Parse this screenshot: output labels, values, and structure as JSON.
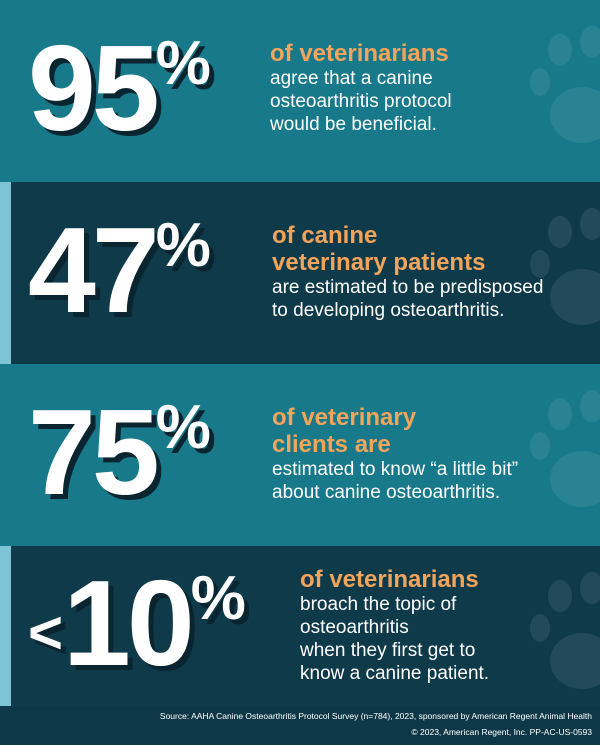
{
  "stats": [
    {
      "number": "95",
      "unit": "%",
      "heading": [
        "of veterinarians"
      ],
      "body": [
        "agree that a canine",
        "osteoarthritis protocol",
        "would be beneficial."
      ]
    },
    {
      "number": "47",
      "unit": "%",
      "heading": [
        "of canine",
        "veterinary patients"
      ],
      "body": [
        "are estimated to be predisposed",
        "to developing osteoarthritis."
      ]
    },
    {
      "number": "75",
      "unit": "%",
      "heading": [
        "of veterinary",
        "clients are"
      ],
      "body": [
        "estimated to know “a little bit”",
        "about canine osteoarthritis."
      ]
    },
    {
      "prefix": "<",
      "number": "10",
      "unit": "%",
      "heading": [
        "of veterinarians"
      ],
      "body": [
        "broach the topic of",
        "osteoarthritis",
        "when they first get to",
        "know a canine patient."
      ]
    }
  ],
  "footer": {
    "source": "Source: AAHA Canine Osteoarthritis Protocol Survey (n=784), 2023, sponsored by American Regent Animal Health",
    "copyright": "© 2023, American Regent, Inc. PP-AC-US-0593"
  }
}
